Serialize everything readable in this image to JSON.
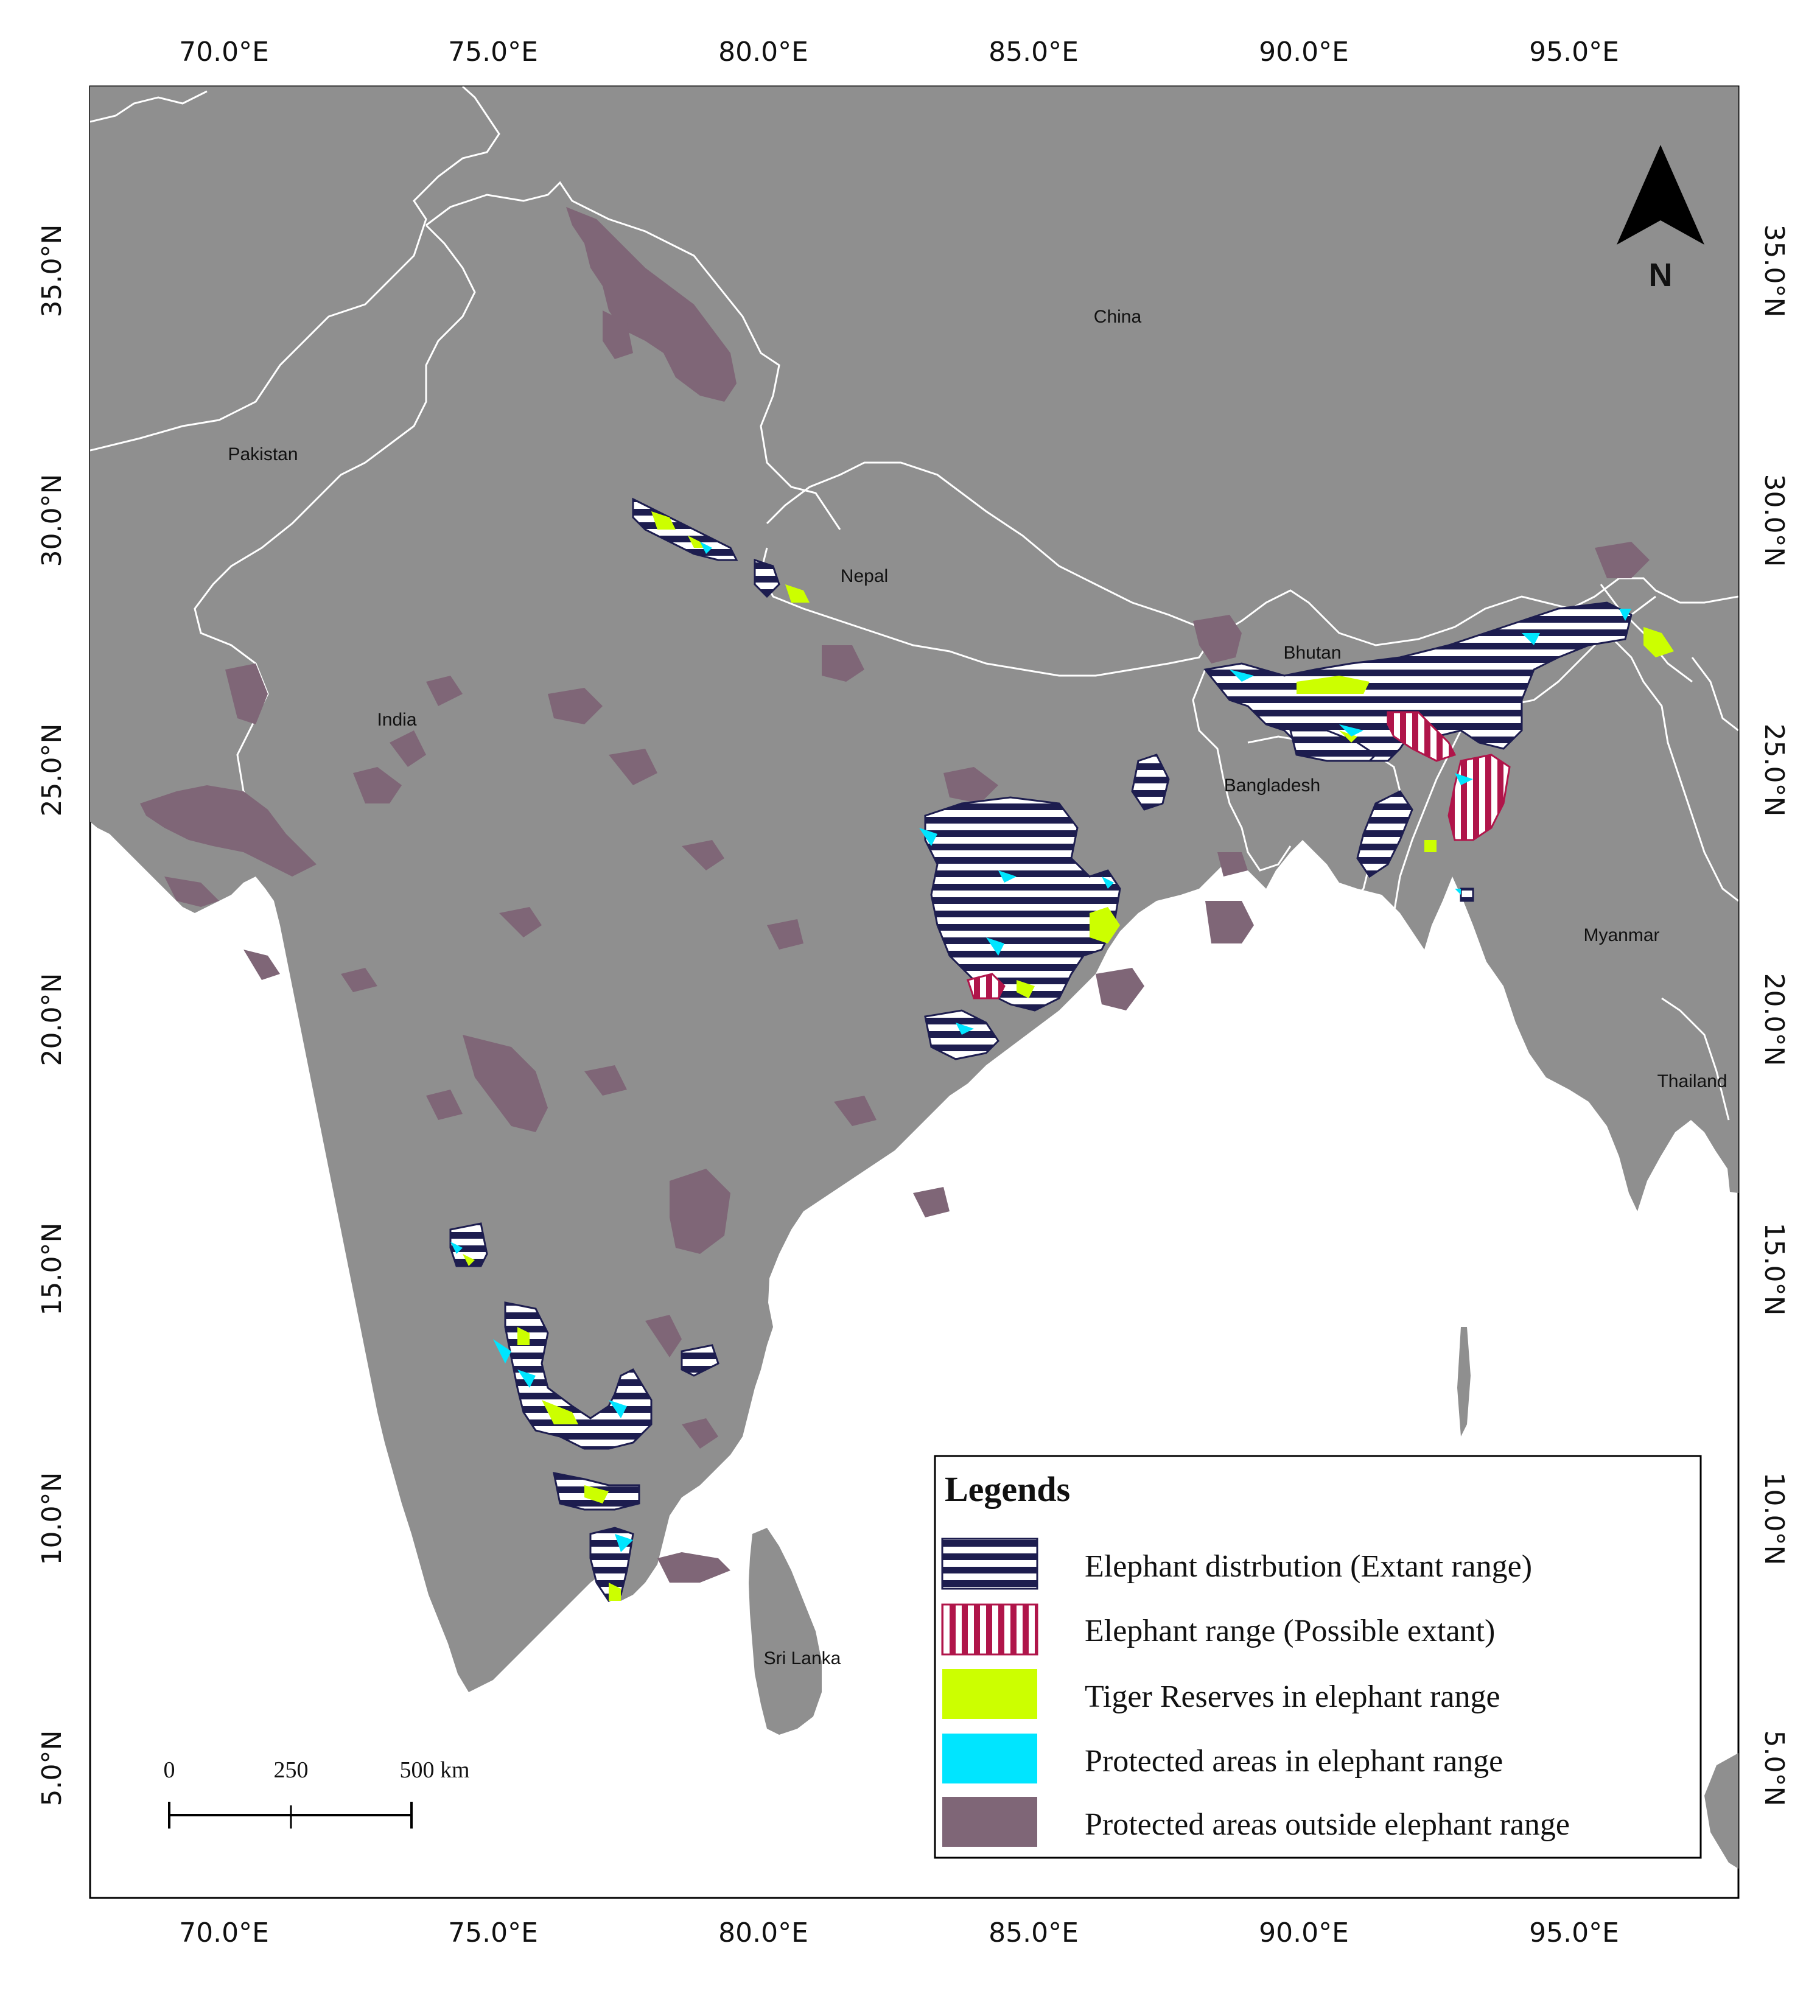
{
  "colors": {
    "background": "#ffffff",
    "land": "#8f8f8f",
    "border_lines": "#ffffff",
    "elephant_extant": "#1d1d4f",
    "elephant_possible": "#b0154a",
    "tiger_reserves": "#ccff00",
    "protected_in_range": "#00e5ff",
    "protected_outside": "#7f6677"
  },
  "axes": {
    "x_ticks": [
      "70.0°E",
      "75.0°E",
      "80.0°E",
      "85.0°E",
      "90.0°E",
      "95.0°E"
    ],
    "y_ticks": [
      "35.0°N",
      "30.0°N",
      "25.0°N",
      "20.0°N",
      "15.0°N",
      "10.0°N",
      "5.0°N"
    ]
  },
  "countries": [
    {
      "name": "China"
    },
    {
      "name": "Pakistan"
    },
    {
      "name": "Nepal"
    },
    {
      "name": "Bhutan"
    },
    {
      "name": "India"
    },
    {
      "name": "Bangladesh"
    },
    {
      "name": "Myanmar"
    },
    {
      "name": "Thailand"
    },
    {
      "name": "Sri Lanka"
    }
  ],
  "north_arrow": {
    "label": "N",
    "icon": "north-arrow-icon"
  },
  "scale_bar": {
    "labels": [
      "0",
      "250",
      "500 km"
    ]
  },
  "legend": {
    "title": "Legends",
    "items": [
      {
        "label": "Elephant distrbution (Extant range)",
        "swatch": "horizontal-stripes"
      },
      {
        "label": "Elephant range (Possible extant)",
        "swatch": "vertical-stripes"
      },
      {
        "label": "Tiger Reserves in elephant range",
        "swatch": "solid-yellow"
      },
      {
        "label": "Protected areas in elephant range",
        "swatch": "solid-cyan"
      },
      {
        "label": "Protected areas outside elephant range",
        "swatch": "solid-mauve"
      }
    ]
  }
}
